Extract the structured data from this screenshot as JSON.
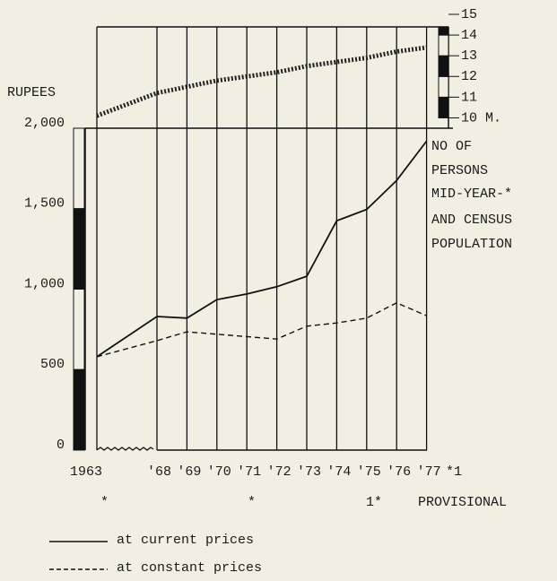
{
  "chart_data": {
    "type": "line",
    "y_label": "RUPEES",
    "categories": [
      "1963",
      "'68",
      "'69",
      "'70",
      "'71",
      "'72",
      "'73",
      "'74",
      "'75",
      "'76",
      "'77"
    ],
    "series": [
      {
        "name": "at current prices",
        "color": "#111111",
        "style": "solid",
        "values": [
          580,
          830,
          820,
          935,
          970,
          1015,
          1080,
          1425,
          1495,
          1675,
          1920
        ]
      },
      {
        "name": "at constant prices",
        "color": "#111111",
        "style": "dashed",
        "values": [
          580,
          680,
          735,
          720,
          705,
          690,
          770,
          790,
          820,
          915,
          835
        ]
      }
    ],
    "ylim": [
      0,
      2000
    ],
    "yticks": [
      0,
      500,
      {
        "value": 1000,
        "label": "1,000"
      },
      {
        "value": 1500,
        "label": "1,500"
      },
      {
        "value": 2000,
        "label": "2,000"
      }
    ],
    "population": {
      "label_lines": [
        "NO OF",
        "PERSONS",
        "MID-YEAR-*",
        "AND CENSUS",
        "POPULATION"
      ],
      "color": "#222222",
      "values": [
        10.1,
        11.2,
        11.5,
        11.8,
        12.0,
        12.2,
        12.5,
        12.7,
        12.9,
        13.2,
        13.4
      ],
      "ylim": [
        9.5,
        15
      ],
      "yticks": [
        {
          "value": 10,
          "label": "10 M."
        },
        11,
        12,
        13,
        14,
        15
      ]
    },
    "notes": {
      "x_suffix": "*1",
      "star_1963": "*",
      "star_1971": "*",
      "footnote_mark": "1*",
      "footnote": "PROVISIONAL"
    }
  }
}
